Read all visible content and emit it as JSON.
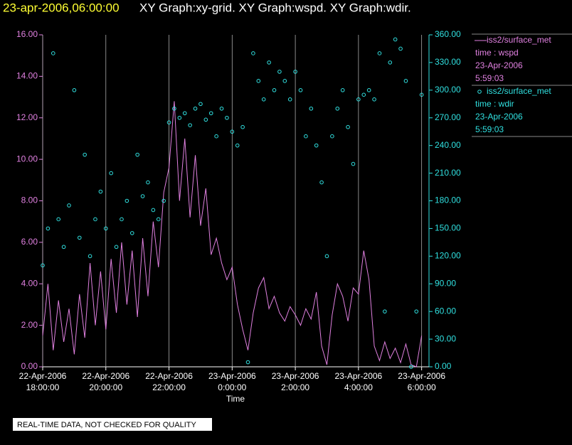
{
  "chart_data": {
    "type": "line",
    "title": "23-apr-2006,06:00:00",
    "subtitle": "XY Graph:xy-grid.  XY Graph:wspd.  XY Graph:wdir.",
    "x_label": "Time",
    "footer": "REAL-TIME DATA, NOT CHECKED FOR QUALITY",
    "grid": true,
    "legend_position": "right",
    "xlim": [
      "2006-04-22T18:00",
      "2006-04-23T06:14"
    ],
    "xticks": [
      {
        "value": "2006-04-22T18:00",
        "label": "22-Apr-2006 18:00:00"
      },
      {
        "value": "2006-04-22T20:00",
        "label": "22-Apr-2006 20:00:00"
      },
      {
        "value": "2006-04-22T22:00",
        "label": "22-Apr-2006 22:00:00"
      },
      {
        "value": "2006-04-23T00:00",
        "label": "23-Apr-2006 0:00:00"
      },
      {
        "value": "2006-04-23T02:00",
        "label": "23-Apr-2006 2:00:00"
      },
      {
        "value": "2006-04-23T04:00",
        "label": "23-Apr-2006 4:00:00"
      },
      {
        "value": "2006-04-23T06:00",
        "label": "23-Apr-2006 6:00:00"
      }
    ],
    "ylim": [
      0,
      16
    ],
    "yticks": [
      {
        "value": 0,
        "label": "0.00"
      },
      {
        "value": 2,
        "label": "2.00"
      },
      {
        "value": 4,
        "label": "4.00"
      },
      {
        "value": 6,
        "label": "6.00"
      },
      {
        "value": 8,
        "label": "8.00"
      },
      {
        "value": 10,
        "label": "10.00"
      },
      {
        "value": 12,
        "label": "12.00"
      },
      {
        "value": 14,
        "label": "14.00"
      },
      {
        "value": 16,
        "label": "16.00"
      }
    ],
    "y2lim": [
      0,
      360
    ],
    "y2ticks": [
      {
        "value": 0,
        "label": "0.00"
      },
      {
        "value": 30,
        "label": "30.00"
      },
      {
        "value": 60,
        "label": "60.00"
      },
      {
        "value": 90,
        "label": "90.00"
      },
      {
        "value": 120,
        "label": "120.00"
      },
      {
        "value": 150,
        "label": "150.00"
      },
      {
        "value": 180,
        "label": "180.00"
      },
      {
        "value": 210,
        "label": "210.00"
      },
      {
        "value": 240,
        "label": "240.00"
      },
      {
        "value": 270,
        "label": "270.00"
      },
      {
        "value": 300,
        "label": "300.00"
      },
      {
        "value": 330,
        "label": "330.00"
      },
      {
        "value": 360,
        "label": "360.00"
      }
    ],
    "series": [
      {
        "name": "iss2/surface_met",
        "type": "line",
        "color": "#e080e0",
        "legend_text": [
          "time : wspd",
          "23-Apr-2006",
          "5:59:03"
        ],
        "x": [
          "2006-04-22T18:00",
          "2006-04-22T18:10",
          "2006-04-22T18:20",
          "2006-04-22T18:30",
          "2006-04-22T18:40",
          "2006-04-22T18:50",
          "2006-04-22T19:00",
          "2006-04-22T19:10",
          "2006-04-22T19:20",
          "2006-04-22T19:30",
          "2006-04-22T19:40",
          "2006-04-22T19:50",
          "2006-04-22T20:00",
          "2006-04-22T20:10",
          "2006-04-22T20:20",
          "2006-04-22T20:30",
          "2006-04-22T20:40",
          "2006-04-22T20:50",
          "2006-04-22T21:00",
          "2006-04-22T21:10",
          "2006-04-22T21:20",
          "2006-04-22T21:30",
          "2006-04-22T21:40",
          "2006-04-22T21:50",
          "2006-04-22T22:00",
          "2006-04-22T22:10",
          "2006-04-22T22:20",
          "2006-04-22T22:30",
          "2006-04-22T22:40",
          "2006-04-22T22:50",
          "2006-04-22T23:00",
          "2006-04-22T23:10",
          "2006-04-22T23:20",
          "2006-04-22T23:30",
          "2006-04-22T23:40",
          "2006-04-22T23:50",
          "2006-04-23T00:00",
          "2006-04-23T00:10",
          "2006-04-23T00:20",
          "2006-04-23T00:30",
          "2006-04-23T00:40",
          "2006-04-23T00:50",
          "2006-04-23T01:00",
          "2006-04-23T01:10",
          "2006-04-23T01:20",
          "2006-04-23T01:30",
          "2006-04-23T01:40",
          "2006-04-23T01:50",
          "2006-04-23T02:00",
          "2006-04-23T02:10",
          "2006-04-23T02:20",
          "2006-04-23T02:30",
          "2006-04-23T02:40",
          "2006-04-23T02:50",
          "2006-04-23T03:00",
          "2006-04-23T03:10",
          "2006-04-23T03:20",
          "2006-04-23T03:30",
          "2006-04-23T03:40",
          "2006-04-23T03:50",
          "2006-04-23T04:00",
          "2006-04-23T04:10",
          "2006-04-23T04:20",
          "2006-04-23T04:30",
          "2006-04-23T04:40",
          "2006-04-23T04:50",
          "2006-04-23T05:00",
          "2006-04-23T05:10",
          "2006-04-23T05:20",
          "2006-04-23T05:30",
          "2006-04-23T05:40",
          "2006-04-23T05:50",
          "2006-04-23T06:00"
        ],
        "values": [
          1.5,
          4.0,
          0.8,
          3.2,
          1.2,
          2.8,
          0.6,
          3.5,
          1.4,
          5.0,
          2.0,
          4.6,
          1.8,
          5.2,
          2.6,
          6.0,
          3.0,
          5.6,
          2.4,
          6.2,
          3.4,
          7.0,
          4.8,
          8.4,
          9.6,
          12.8,
          8.0,
          11.0,
          7.2,
          10.2,
          6.8,
          8.6,
          5.4,
          6.2,
          5.0,
          4.2,
          4.8,
          3.0,
          1.8,
          0.8,
          2.6,
          3.8,
          4.3,
          2.8,
          3.4,
          2.6,
          2.2,
          2.9,
          2.5,
          2.0,
          2.8,
          2.3,
          3.6,
          1.0,
          0.1,
          2.5,
          4.0,
          3.4,
          2.2,
          3.8,
          3.5,
          5.6,
          4.2,
          1.0,
          0.3,
          1.2,
          0.4,
          0.9,
          0.2,
          1.1,
          0.1,
          0.0,
          1.5
        ]
      },
      {
        "name": "iss2/surface_met",
        "type": "scatter",
        "axis": "y2",
        "color": "#30e0e0",
        "legend_text": [
          "time : wdir",
          "23-Apr-2006",
          "5:59:03"
        ],
        "x": [
          "2006-04-22T18:00",
          "2006-04-22T18:10",
          "2006-04-22T18:20",
          "2006-04-22T18:30",
          "2006-04-22T18:40",
          "2006-04-22T18:50",
          "2006-04-22T19:00",
          "2006-04-22T19:10",
          "2006-04-22T19:20",
          "2006-04-22T19:30",
          "2006-04-22T19:40",
          "2006-04-22T19:50",
          "2006-04-22T20:00",
          "2006-04-22T20:10",
          "2006-04-22T20:20",
          "2006-04-22T20:30",
          "2006-04-22T20:40",
          "2006-04-22T20:50",
          "2006-04-22T21:00",
          "2006-04-22T21:10",
          "2006-04-22T21:20",
          "2006-04-22T21:30",
          "2006-04-22T21:40",
          "2006-04-22T21:50",
          "2006-04-22T22:00",
          "2006-04-22T22:10",
          "2006-04-22T22:20",
          "2006-04-22T22:30",
          "2006-04-22T22:40",
          "2006-04-22T22:50",
          "2006-04-22T23:00",
          "2006-04-22T23:10",
          "2006-04-22T23:20",
          "2006-04-22T23:30",
          "2006-04-22T23:40",
          "2006-04-22T23:50",
          "2006-04-23T00:00",
          "2006-04-23T00:10",
          "2006-04-23T00:20",
          "2006-04-23T00:30",
          "2006-04-23T00:40",
          "2006-04-23T00:50",
          "2006-04-23T01:00",
          "2006-04-23T01:10",
          "2006-04-23T01:20",
          "2006-04-23T01:30",
          "2006-04-23T01:40",
          "2006-04-23T01:50",
          "2006-04-23T02:00",
          "2006-04-23T02:10",
          "2006-04-23T02:20",
          "2006-04-23T02:30",
          "2006-04-23T02:40",
          "2006-04-23T02:50",
          "2006-04-23T03:00",
          "2006-04-23T03:10",
          "2006-04-23T03:20",
          "2006-04-23T03:30",
          "2006-04-23T03:40",
          "2006-04-23T03:50",
          "2006-04-23T04:00",
          "2006-04-23T04:10",
          "2006-04-23T04:20",
          "2006-04-23T04:30",
          "2006-04-23T04:40",
          "2006-04-23T04:50",
          "2006-04-23T05:00",
          "2006-04-23T05:10",
          "2006-04-23T05:20",
          "2006-04-23T05:30",
          "2006-04-23T05:40",
          "2006-04-23T05:50",
          "2006-04-23T06:00"
        ],
        "values": [
          110,
          150,
          340,
          160,
          130,
          175,
          300,
          140,
          230,
          120,
          160,
          190,
          150,
          210,
          130,
          160,
          180,
          145,
          230,
          185,
          200,
          170,
          160,
          180,
          265,
          280,
          270,
          275,
          262,
          280,
          285,
          268,
          275,
          250,
          280,
          270,
          255,
          240,
          260,
          5,
          340,
          310,
          290,
          330,
          300,
          320,
          310,
          290,
          320,
          300,
          250,
          280,
          240,
          200,
          120,
          250,
          280,
          300,
          260,
          220,
          290,
          295,
          300,
          290,
          340,
          60,
          330,
          355,
          345,
          310,
          0,
          60,
          295
        ]
      }
    ]
  }
}
